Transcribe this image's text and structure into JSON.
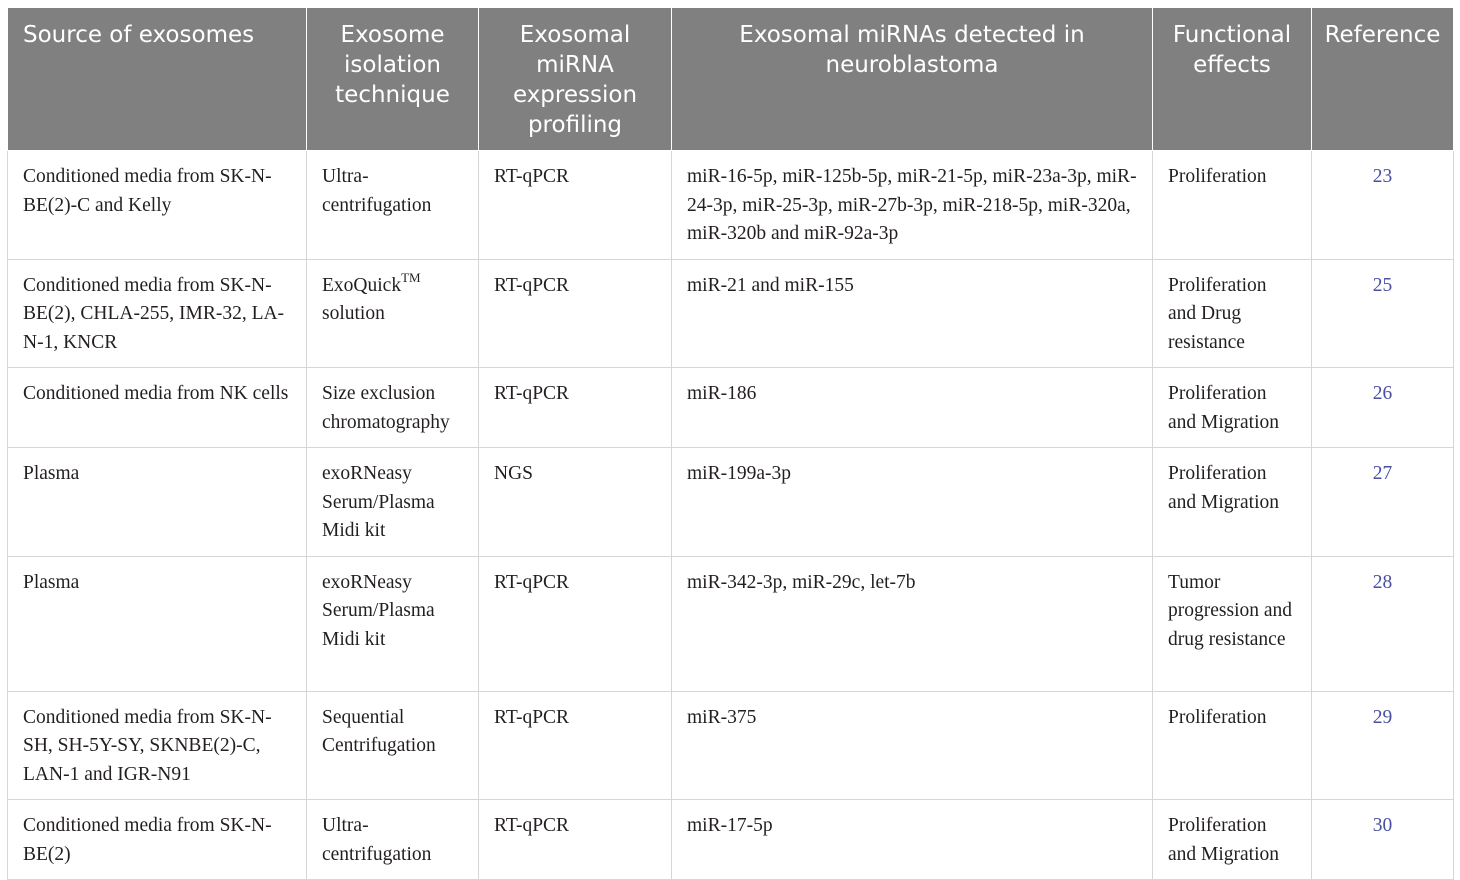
{
  "table": {
    "headers": [
      "Source of exosomes",
      "Exosome isolation technique",
      "Exosomal miRNA expression profiling",
      "Exosomal miRNAs detected in neuroblastoma",
      "Functional effects",
      "Reference"
    ],
    "rows": [
      {
        "source": "Conditioned media from SK-N-BE(2)-C and Kelly",
        "isolation": "Ultra-centrifugation",
        "isolation_sup": "",
        "isolation_suffix": "",
        "profiling": "RT-qPCR",
        "mirnas": "miR-16-5p, miR-125b-5p, miR-21-5p, miR-23a-3p, miR-24-3p, miR-25-3p, miR-27b-3p, miR-218-5p, miR-320a, miR-320b and miR-92a-3p",
        "effects": "Proliferation",
        "reference": "23"
      },
      {
        "source": "Conditioned media from SK-N-BE(2), CHLA-255, IMR-32, LA-N-1, KNCR",
        "isolation": "ExoQuick",
        "isolation_sup": "TM",
        "isolation_suffix": " solution",
        "profiling": "RT-qPCR",
        "mirnas": "miR-21 and miR-155",
        "effects": "Proliferation and Drug resistance",
        "reference": "25"
      },
      {
        "source": "Conditioned media from NK cells",
        "isolation": "Size exclusion chromatography",
        "isolation_sup": "",
        "isolation_suffix": "",
        "profiling": "RT-qPCR",
        "mirnas": "miR-186",
        "effects": "Proliferation and Migration",
        "reference": "26"
      },
      {
        "source": "Plasma",
        "isolation": "exoRNeasy Serum/Plasma Midi kit",
        "isolation_sup": "",
        "isolation_suffix": "",
        "profiling": "NGS",
        "mirnas": "miR-199a-3p",
        "effects": "Proliferation and Migration",
        "reference": "27"
      },
      {
        "source": "Plasma",
        "isolation": "exoRNeasy Serum/Plasma Midi kit",
        "isolation_sup": "",
        "isolation_suffix": "",
        "profiling": "RT-qPCR",
        "mirnas": "miR-342-3p, miR-29c, let-7b",
        "effects": "Tumor progression and drug resistance",
        "reference": "28"
      },
      {
        "source": "Conditioned media from SK-N-SH, SH-5Y-SY, SKNBE(2)-C, LAN-1 and IGR-N91",
        "isolation": "Sequential Centrifugation",
        "isolation_sup": "",
        "isolation_suffix": "",
        "profiling": "RT-qPCR",
        "mirnas": "miR-375",
        "effects": "Proliferation",
        "reference": "29"
      },
      {
        "source": "Conditioned media from SK-N-BE(2)",
        "isolation": "Ultra-centrifugation",
        "isolation_sup": "",
        "isolation_suffix": "",
        "profiling": "RT-qPCR",
        "mirnas": "miR-17-5p",
        "effects": "Proliferation and Migration",
        "reference": "30"
      }
    ]
  }
}
